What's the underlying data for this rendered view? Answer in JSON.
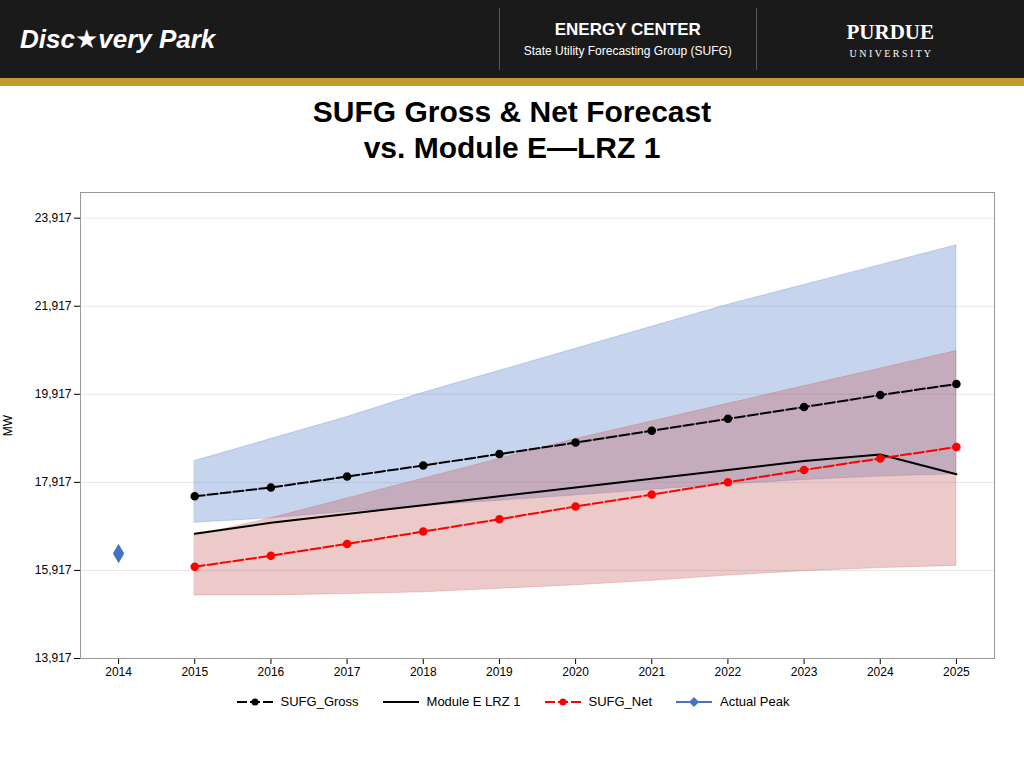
{
  "chart_data": {
    "type": "line",
    "title": "SUFG Gross & Net Forecast\nvs. Module E—LRZ 1",
    "annotations": [
      "Disc★very Park",
      "ENERGY CENTER",
      "State Utility Forecasting Group (SUFG)",
      "PURDUE",
      "U N I V E R S I T Y"
    ],
    "ylabel": "MW",
    "x": [
      2014,
      2015,
      2016,
      2017,
      2018,
      2019,
      2020,
      2021,
      2022,
      2023,
      2024,
      2025
    ],
    "xlim": [
      2013.5,
      2025.5
    ],
    "xticks": [
      2014,
      2015,
      2016,
      2017,
      2018,
      2019,
      2020,
      2021,
      2022,
      2023,
      2024,
      2025
    ],
    "ylim": [
      13917,
      24500
    ],
    "yticks": [
      {
        "value": 13917,
        "label": "13,917"
      },
      {
        "value": 15917,
        "label": "15,917"
      },
      {
        "value": 17917,
        "label": "17,917"
      },
      {
        "value": 19917,
        "label": "19,917"
      },
      {
        "value": 21917,
        "label": "21,917"
      },
      {
        "value": 23917,
        "label": "23,917"
      }
    ],
    "grid": true,
    "legend": "bottom",
    "series": [
      {
        "name": "SUFG_Gross",
        "color": "#000000",
        "line_style": "dashed",
        "marker": "circle",
        "values": [
          null,
          17600,
          17800,
          18050,
          18300,
          18560,
          18820,
          19090,
          19360,
          19630,
          19900,
          20150
        ],
        "band": {
          "color": "#4472c4",
          "lower": [
            null,
            17000,
            17100,
            17250,
            17380,
            17500,
            17620,
            17750,
            17870,
            17970,
            18050,
            18100
          ],
          "upper": [
            null,
            18400,
            18900,
            19400,
            19950,
            20450,
            20950,
            21450,
            21950,
            22400,
            22850,
            23300
          ]
        }
      },
      {
        "name": "Module E LRZ 1",
        "color": "#000000",
        "line_style": "solid",
        "values": [
          null,
          16750,
          17000,
          17200,
          17400,
          17600,
          17800,
          18000,
          18200,
          18400,
          18550,
          18100
        ]
      },
      {
        "name": "SUFG_Net",
        "color": "#ff0000",
        "line_style": "dashed",
        "marker": "circle",
        "values": [
          null,
          16000,
          16250,
          16520,
          16800,
          17080,
          17370,
          17640,
          17920,
          18200,
          18460,
          18720
        ],
        "band": {
          "color": "#c0504d",
          "lower": [
            null,
            15350,
            15350,
            15380,
            15420,
            15500,
            15580,
            15680,
            15800,
            15900,
            15970,
            16020
          ],
          "upper": [
            null,
            16700,
            17100,
            17550,
            18000,
            18450,
            18900,
            19300,
            19700,
            20100,
            20500,
            20900
          ]
        }
      },
      {
        "name": "Actual Peak",
        "color": "#4472c4",
        "line_style": "solid",
        "marker": "diamond",
        "values": [
          16300,
          null,
          null,
          null,
          null,
          null,
          null,
          null,
          null,
          null,
          null,
          null
        ]
      }
    ]
  }
}
